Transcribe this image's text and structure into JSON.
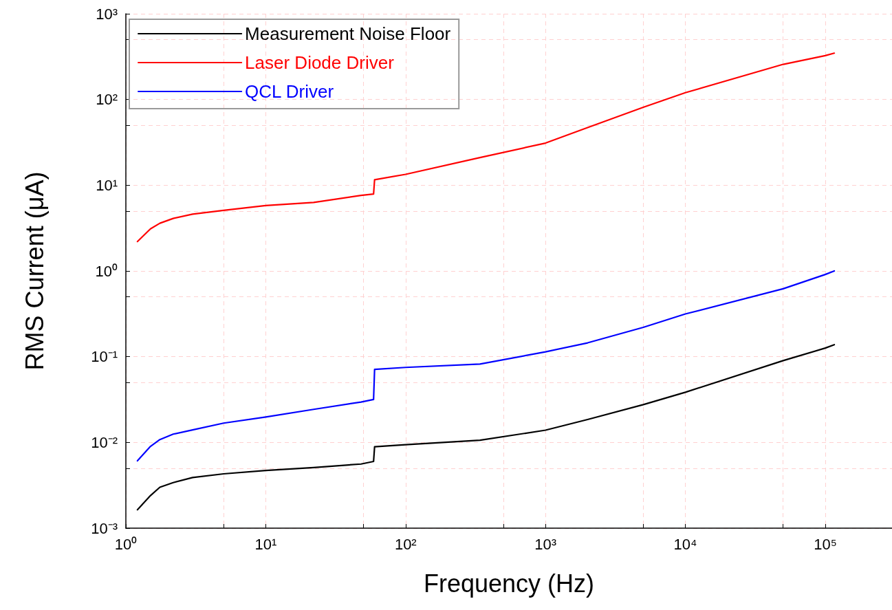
{
  "chart_data": {
    "type": "line",
    "xlabel": "Frequency (Hz)",
    "ylabel": "RMS Current (μA)",
    "x": [
      1.21,
      1.5,
      1.75,
      2.18,
      3,
      5,
      10,
      22,
      48,
      59,
      60,
      100,
      340,
      1000,
      2000,
      5000,
      10000,
      50000,
      100000,
      116000
    ],
    "series": [
      {
        "name": "Measurement Noise Floor",
        "color": "#000000",
        "values": [
          0.00164,
          0.0024,
          0.003,
          0.0034,
          0.0039,
          0.0043,
          0.0047,
          0.0051,
          0.0056,
          0.006,
          0.0089,
          0.0094,
          0.0106,
          0.0139,
          0.0185,
          0.0276,
          0.0385,
          0.09,
          0.126,
          0.138
        ]
      },
      {
        "name": "Laser Diode Driver",
        "color": "#ff0000",
        "values": [
          2.2,
          3.1,
          3.6,
          4.1,
          4.6,
          5.1,
          5.8,
          6.3,
          7.6,
          7.9,
          11.6,
          13.4,
          21,
          31,
          47,
          81,
          120,
          257,
          325,
          347
        ]
      },
      {
        "name": "QCL Driver",
        "color": "#0000ff",
        "values": [
          0.0061,
          0.009,
          0.0108,
          0.0125,
          0.014,
          0.0168,
          0.0198,
          0.0243,
          0.0296,
          0.0317,
          0.0711,
          0.075,
          0.082,
          0.114,
          0.145,
          0.22,
          0.315,
          0.62,
          0.91,
          1.0
        ]
      }
    ],
    "xlim": [
      1,
      300000
    ],
    "xticks": [
      {
        "value": 1,
        "label": "10⁰"
      },
      {
        "value": 5,
        "label": null
      },
      {
        "value": 10,
        "label": "10¹"
      },
      {
        "value": 50,
        "label": null
      },
      {
        "value": 100,
        "label": "10²"
      },
      {
        "value": 500,
        "label": null
      },
      {
        "value": 1000,
        "label": "10³"
      },
      {
        "value": 5000,
        "label": null
      },
      {
        "value": 10000,
        "label": "10⁴"
      },
      {
        "value": 50000,
        "label": null
      },
      {
        "value": 100000,
        "label": "10⁵"
      }
    ],
    "ylim": [
      0.001,
      1000
    ],
    "yticks": [
      {
        "value": 0.001,
        "label": "10⁻³"
      },
      {
        "value": 0.005,
        "label": null
      },
      {
        "value": 0.01,
        "label": "10⁻²"
      },
      {
        "value": 0.05,
        "label": null
      },
      {
        "value": 0.1,
        "label": "10⁻¹"
      },
      {
        "value": 0.5,
        "label": null
      },
      {
        "value": 1,
        "label": "10⁰"
      },
      {
        "value": 5,
        "label": null
      },
      {
        "value": 10,
        "label": "10¹"
      },
      {
        "value": 50,
        "label": null
      },
      {
        "value": 100,
        "label": "10²"
      },
      {
        "value": 500,
        "label": null
      },
      {
        "value": 1000,
        "label": "10³"
      }
    ],
    "log": "xy",
    "grid": true,
    "legend": "top left",
    "marker": "none",
    "line_style": "solid"
  }
}
